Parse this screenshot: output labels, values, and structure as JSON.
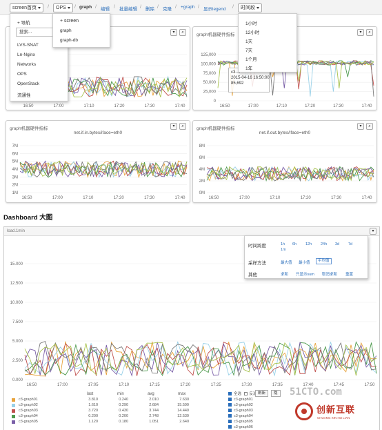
{
  "toolbar": {
    "screen_btn": "screen首页",
    "ops_btn": "OPS",
    "sep": "/",
    "crumb_graph": "graph",
    "links": [
      "编辑",
      "批量编辑",
      "删除",
      "克隆",
      "+graph",
      "显示legend"
    ],
    "time_btn": "时间段"
  },
  "screen_menu": {
    "nav": "+ 导航",
    "search_placeholder": "搜索...",
    "items": [
      "LVS-SNAT",
      "Ln-Nginx",
      "Networks",
      "OPS",
      "OpenStack",
      "流通性"
    ]
  },
  "ops_menu": {
    "items": [
      "+ screen",
      "graph",
      "graph-db"
    ]
  },
  "time_menu": {
    "items": [
      "1小时",
      "12小时",
      "1天",
      "7天",
      "1个月",
      "1年"
    ]
  },
  "panels": [
    {
      "title": "g",
      "subtitle": "",
      "yticks": [],
      "xticks": [
        "16:50",
        "17:00",
        "17:10",
        "17:20",
        "17:30",
        "17:40"
      ]
    },
    {
      "title": "graph机器硬件指标",
      "subtitle": "",
      "yticks": [
        "125,000",
        "100,000",
        "75,000",
        "50,000",
        "25,000",
        "0"
      ],
      "xticks": [
        "16:50",
        "17:00",
        "17:10",
        "17:20",
        "17:30",
        "17:40"
      ]
    },
    {
      "title": "graph机器硬件指标",
      "subtitle": "net.if.in.bytes/iface=eth0",
      "yticks": [
        "7M",
        "6M",
        "5M",
        "4M",
        "3M",
        "2M",
        "1M"
      ],
      "xticks": [
        "16:50",
        "17:00",
        "17:10",
        "17:20",
        "17:30",
        "17:40"
      ]
    },
    {
      "title": "graph机器硬件指标",
      "subtitle": "net.if.out.bytes/iface=eth0",
      "yticks": [
        "8M",
        "6M",
        "4M",
        "2M",
        "0M"
      ],
      "xticks": [
        "16:50",
        "17:00",
        "17:10",
        "17:20",
        "17:30",
        "17:40"
      ]
    }
  ],
  "tooltip": {
    "line1": "c3-...",
    "line2": "2015-04-16 16:50:00",
    "line3": "85,692"
  },
  "section_title": "Dashboard 大图",
  "big_chart": {
    "title": "load.1min",
    "yticks": [
      "15.000",
      "12.500",
      "10.000",
      "7.500",
      "5.000",
      "2.500",
      "0.000"
    ],
    "xticks": [
      "16:50",
      "17:00",
      "17:05",
      "17:10",
      "17:15",
      "17:20",
      "17:25",
      "17:30",
      "17:35",
      "17:40",
      "17:45",
      "17:50"
    ]
  },
  "options": {
    "span_label": "时间跨度",
    "spans": [
      "1h",
      "6h",
      "12h",
      "24h",
      "3d",
      "7d",
      "1m"
    ],
    "sample_label": "采样方法",
    "samples": [
      "最大值",
      "最小值",
      "平均值"
    ],
    "other_label": "其他",
    "others": [
      "求和",
      "只显示sum",
      "取消求和",
      "重置"
    ]
  },
  "legend": {
    "headers": [
      "last",
      "min",
      "avg",
      "max"
    ],
    "rows": [
      {
        "name": "c3-graph01",
        "color": "#e8a33c",
        "last": "3.810",
        "min": "0.240",
        "avg": "2.010",
        "max": "7.630"
      },
      {
        "name": "c3-graph02",
        "color": "#9ad1e8",
        "last": "1.610",
        "min": "0.290",
        "avg": "2.684",
        "max": "15.590"
      },
      {
        "name": "c3-graph03",
        "color": "#c0504d",
        "last": "3.720",
        "min": "0.430",
        "avg": "3.744",
        "max": "14.440"
      },
      {
        "name": "c3-graph04",
        "color": "#4e9a4e",
        "last": "0.200",
        "min": "0.200",
        "avg": "2.748",
        "max": "12.530"
      },
      {
        "name": "c3-graph05",
        "color": "#7a5fa8",
        "last": "1.120",
        "min": "0.180",
        "avg": "1.051",
        "max": "2.640"
      }
    ],
    "right_header": "全选",
    "right_header2": "反选",
    "refresh": "刷新",
    "right_btn": "隐",
    "right_items": [
      "c3-graph01",
      "c3-graph02",
      "c3-graph03",
      "c3-graph04",
      "c3-graph05",
      "c3-graph06"
    ]
  },
  "watermark": {
    "site": "51CTO.com",
    "cn": "创新互联",
    "en": "CHUANG XIN HU LIAN"
  },
  "series_colors": [
    "#e8a33c",
    "#9ad1e8",
    "#c0504d",
    "#4e9a4e",
    "#7a5fa8",
    "#7a7a7a",
    "#a8c24e"
  ]
}
